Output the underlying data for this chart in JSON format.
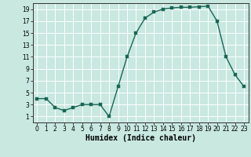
{
  "x": [
    0,
    1,
    2,
    3,
    4,
    5,
    6,
    7,
    8,
    9,
    10,
    11,
    12,
    13,
    14,
    15,
    16,
    17,
    18,
    19,
    20,
    21,
    22,
    23
  ],
  "y": [
    4,
    4,
    2.5,
    2,
    2.5,
    3,
    3,
    3,
    1,
    6,
    11,
    15,
    17.5,
    18.5,
    19,
    19.2,
    19.3,
    19.3,
    19.4,
    19.5,
    17,
    11,
    8,
    6
  ],
  "line_color": "#1a6655",
  "marker_color": "#1a6655",
  "bg_color": "#c8e8e0",
  "grid_color": "#ffffff",
  "xlabel": "Humidex (Indice chaleur)",
  "xlim": [
    -0.5,
    23.5
  ],
  "ylim": [
    0,
    20
  ],
  "yticks": [
    1,
    3,
    5,
    7,
    9,
    11,
    13,
    15,
    17,
    19
  ],
  "xticks": [
    0,
    1,
    2,
    3,
    4,
    5,
    6,
    7,
    8,
    9,
    10,
    11,
    12,
    13,
    14,
    15,
    16,
    17,
    18,
    19,
    20,
    21,
    22,
    23
  ],
  "marker_size": 2.5,
  "line_width": 1.0,
  "xlabel_fontsize": 7,
  "tick_fontsize": 5.5
}
